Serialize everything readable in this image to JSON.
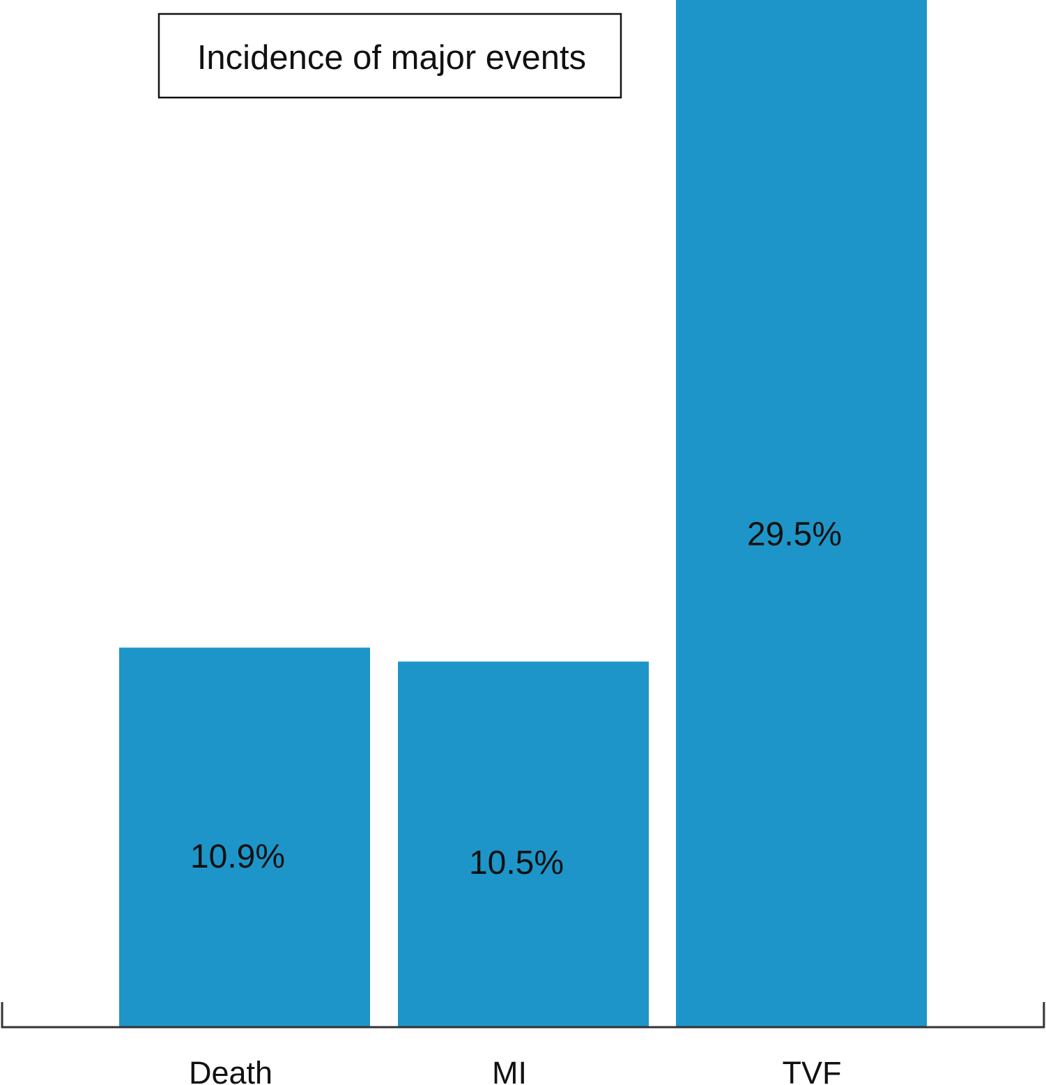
{
  "chart_data": {
    "type": "bar",
    "title": "Incidence of major events",
    "categories": [
      "Death",
      "MI",
      "TVF"
    ],
    "values": [
      10.9,
      10.5,
      29.5
    ],
    "data_labels": [
      "10.9%",
      "10.5%",
      "29.5%"
    ],
    "xlabel": "",
    "ylabel": "",
    "ylim": [
      0,
      29.5
    ],
    "unit": "%",
    "grid": false,
    "legend": "none",
    "title_placement": "boxed, top-left"
  },
  "colors": {
    "bar": "#1E95C8",
    "axis": "#333333",
    "text": "#111111",
    "background": "#FFFFFF"
  }
}
